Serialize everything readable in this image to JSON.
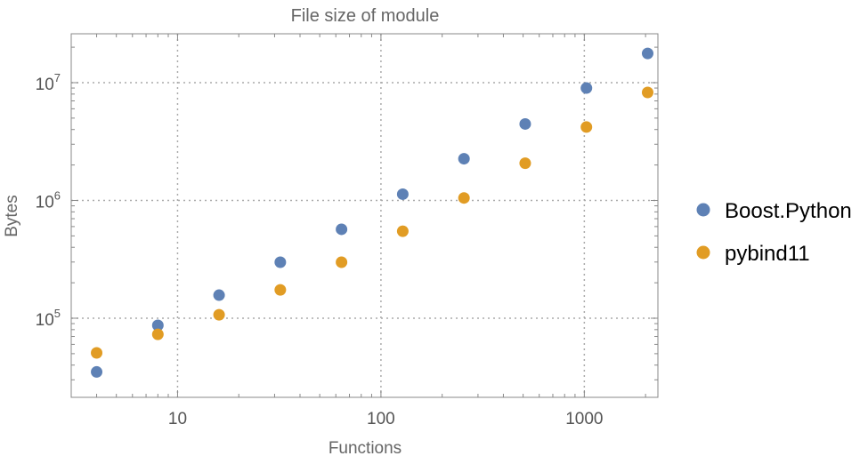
{
  "chart_data": {
    "type": "scatter",
    "title": "File size of module",
    "xlabel": "Functions",
    "ylabel": "Bytes",
    "xscale": "log",
    "yscale": "log",
    "xlim": [
      3,
      2300
    ],
    "ylim": [
      21300,
      26000000
    ],
    "grid": true,
    "legend_placement": "right",
    "x_ticks": [
      {
        "v": 10,
        "label": "10"
      },
      {
        "v": 100,
        "label": "100"
      },
      {
        "v": 1000,
        "label": "1000"
      }
    ],
    "y_ticks": [
      {
        "v": 100000,
        "base": "10",
        "exp": "5"
      },
      {
        "v": 1000000,
        "base": "10",
        "exp": "6"
      },
      {
        "v": 10000000,
        "base": "10",
        "exp": "7"
      }
    ],
    "x": [
      4,
      8,
      16,
      32,
      64,
      128,
      256,
      512,
      1024,
      2048
    ],
    "series": [
      {
        "name": "Boost.Python",
        "color": "#5e81b5",
        "values": [
          35000,
          87000,
          157000,
          299000,
          569000,
          1130000,
          2260000,
          4460000,
          9000000,
          17700000
        ]
      },
      {
        "name": "pybind11",
        "color": "#e19c24",
        "values": [
          50800,
          73000,
          107000,
          174000,
          299000,
          548000,
          1050000,
          2070000,
          4200000,
          8260000
        ]
      }
    ]
  }
}
